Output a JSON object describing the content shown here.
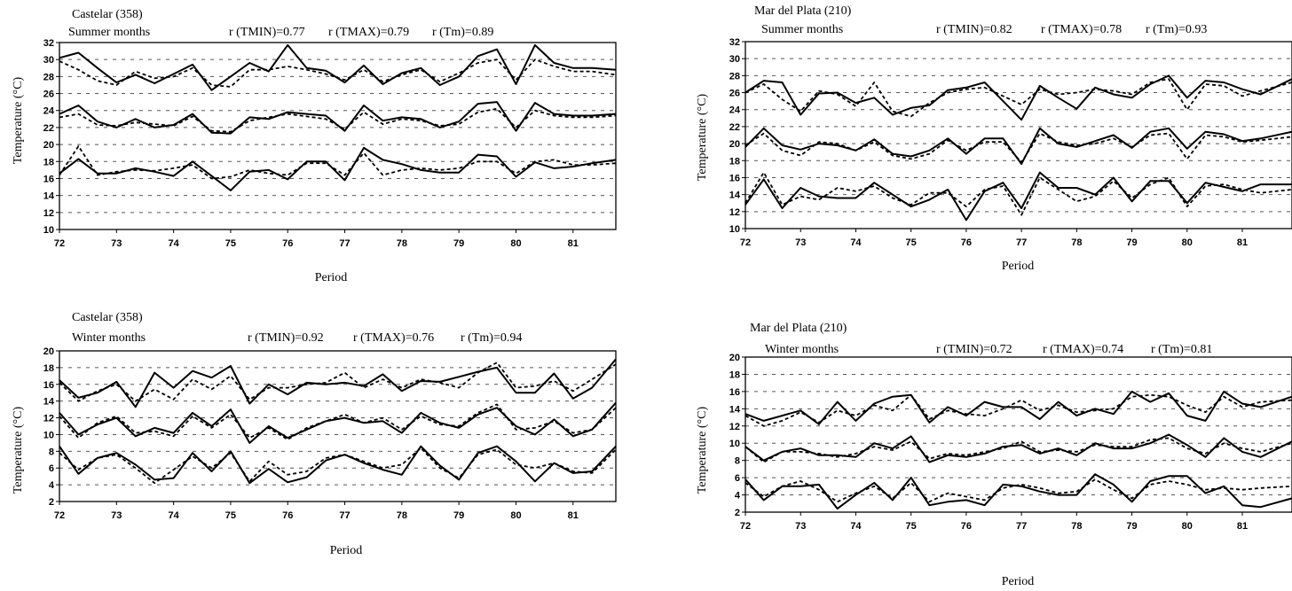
{
  "chart_data": [
    {
      "type": "line",
      "station": "Castelar (358)",
      "season": "Summer months",
      "correlations": [
        "r (TMIN)=0.77",
        "r (TMAX)=0.79",
        "r (Tm)=0.89"
      ],
      "ylabel": "Temperature (°C)",
      "xlabel": "Period",
      "xlim": [
        72,
        81.75
      ],
      "ylim": [
        10,
        32
      ],
      "yticks": [
        10,
        12,
        14,
        16,
        18,
        20,
        22,
        24,
        26,
        28,
        30,
        32
      ],
      "xticks": [
        72,
        73,
        74,
        75,
        76,
        77,
        78,
        79,
        80,
        81
      ],
      "grid": true,
      "x": [
        72,
        72.333,
        72.667,
        73,
        73.333,
        73.667,
        74,
        74.333,
        74.667,
        75,
        75.333,
        75.667,
        76,
        76.333,
        76.667,
        77,
        77.333,
        77.667,
        78,
        78.333,
        78.667,
        79,
        79.333,
        79.667,
        80,
        80.333,
        80.667,
        81,
        81.333,
        81.75
      ],
      "series": [
        {
          "style": "solid",
          "values": [
            30.2,
            30.8,
            29.0,
            27.3,
            28.2,
            27.2,
            28.3,
            29.4,
            26.4,
            28.0,
            29.6,
            28.6,
            31.7,
            29.0,
            28.7,
            27.3,
            29.3,
            27.1,
            28.4,
            29.0,
            27.0,
            28.0,
            30.4,
            31.2,
            27.1,
            31.7,
            29.6,
            29.0,
            29.0,
            28.8
          ]
        },
        {
          "style": "dashed",
          "values": [
            29.8,
            28.8,
            27.5,
            27.0,
            28.6,
            27.8,
            28.0,
            29.0,
            27.0,
            26.8,
            28.8,
            28.8,
            29.2,
            28.8,
            28.3,
            27.6,
            28.8,
            27.4,
            28.2,
            28.8,
            27.4,
            28.4,
            29.6,
            30.0,
            27.6,
            30.0,
            29.2,
            28.6,
            28.6,
            28.2
          ]
        },
        {
          "style": "solid",
          "values": [
            23.6,
            24.6,
            22.7,
            22.0,
            23.0,
            22.0,
            22.3,
            23.6,
            21.4,
            21.3,
            23.2,
            23.0,
            23.8,
            23.6,
            23.4,
            21.6,
            24.6,
            22.8,
            23.2,
            23.0,
            22.0,
            22.7,
            24.8,
            25.0,
            21.6,
            24.9,
            23.6,
            23.4,
            23.4,
            23.6
          ]
        },
        {
          "style": "dashed",
          "values": [
            23.2,
            23.6,
            22.3,
            22.2,
            22.6,
            22.4,
            22.2,
            23.3,
            21.6,
            21.5,
            22.8,
            23.2,
            23.6,
            23.3,
            23.0,
            21.8,
            23.8,
            22.4,
            23.0,
            22.8,
            22.2,
            22.4,
            23.8,
            24.2,
            22.0,
            24.0,
            23.4,
            23.2,
            23.2,
            23.4
          ]
        },
        {
          "style": "solid",
          "values": [
            16.6,
            18.3,
            16.6,
            16.6,
            17.2,
            16.8,
            16.3,
            18.0,
            16.3,
            14.6,
            16.8,
            17.0,
            15.9,
            18.0,
            18.0,
            15.8,
            19.6,
            18.2,
            17.7,
            17.0,
            16.7,
            16.7,
            18.8,
            18.6,
            16.2,
            17.9,
            17.2,
            17.4,
            17.8,
            18.2
          ]
        },
        {
          "style": "dashed",
          "values": [
            16.4,
            19.8,
            16.4,
            16.8,
            17.0,
            16.9,
            17.2,
            17.6,
            16.0,
            16.2,
            17.0,
            16.6,
            16.4,
            17.8,
            17.8,
            16.4,
            19.0,
            16.4,
            17.0,
            17.2,
            17.0,
            17.2,
            18.0,
            18.0,
            16.6,
            18.0,
            18.2,
            17.6,
            17.6,
            17.8
          ]
        }
      ]
    },
    {
      "type": "line",
      "station": "Mar del Plata (210)",
      "season": "Summer months",
      "correlations": [
        "r (TMIN)=0.82",
        "r (TMAX)=0.78",
        "r (Tm)=0.93"
      ],
      "ylabel": "Temperature (°C)",
      "xlabel": "Period",
      "xlim": [
        72,
        81.9
      ],
      "ylim": [
        10,
        32
      ],
      "yticks": [
        10,
        12,
        14,
        16,
        18,
        20,
        22,
        24,
        26,
        28,
        30,
        32
      ],
      "xticks": [
        72,
        73,
        74,
        75,
        76,
        77,
        78,
        79,
        80,
        81
      ],
      "grid": true,
      "x": [
        72,
        72.333,
        72.667,
        73,
        73.333,
        73.667,
        74,
        74.333,
        74.667,
        75,
        75.333,
        75.667,
        76,
        76.333,
        76.667,
        77,
        77.333,
        77.667,
        78,
        78.333,
        78.667,
        79,
        79.333,
        79.667,
        80,
        80.333,
        80.667,
        81,
        81.333,
        81.9
      ],
      "series": [
        {
          "style": "solid",
          "values": [
            26.0,
            27.4,
            27.2,
            23.4,
            25.9,
            26.0,
            24.8,
            25.4,
            23.4,
            24.2,
            24.5,
            26.3,
            26.6,
            27.2,
            25.0,
            22.8,
            26.8,
            25.4,
            24.1,
            26.6,
            25.8,
            25.4,
            27.0,
            28.0,
            25.4,
            27.4,
            27.2,
            26.4,
            25.8,
            27.6
          ]
        },
        {
          "style": "dashed",
          "values": [
            26.0,
            27.0,
            25.2,
            23.8,
            26.2,
            25.8,
            24.4,
            27.2,
            23.8,
            23.2,
            24.8,
            26.0,
            26.4,
            26.6,
            25.6,
            24.6,
            26.4,
            25.8,
            26.0,
            26.4,
            26.2,
            25.8,
            27.2,
            27.6,
            24.0,
            27.0,
            26.8,
            25.6,
            26.2,
            27.2
          ]
        },
        {
          "style": "solid",
          "values": [
            19.6,
            21.8,
            19.8,
            19.3,
            20.0,
            19.8,
            19.2,
            20.5,
            18.8,
            18.5,
            19.2,
            20.6,
            18.8,
            20.6,
            20.6,
            17.6,
            21.8,
            20.0,
            19.6,
            20.3,
            21.0,
            19.5,
            21.4,
            21.8,
            19.4,
            21.4,
            21.1,
            20.3,
            20.6,
            21.4
          ]
        },
        {
          "style": "dashed",
          "values": [
            19.8,
            21.2,
            19.2,
            18.6,
            20.2,
            20.0,
            19.2,
            20.2,
            18.6,
            18.2,
            18.8,
            20.4,
            19.2,
            20.2,
            20.2,
            17.8,
            21.2,
            20.2,
            19.8,
            20.0,
            20.6,
            19.6,
            21.0,
            21.2,
            18.2,
            21.0,
            20.8,
            20.2,
            20.4,
            20.8
          ]
        },
        {
          "style": "solid",
          "values": [
            12.8,
            15.8,
            12.4,
            14.8,
            13.8,
            13.6,
            13.6,
            15.4,
            14.0,
            12.6,
            13.4,
            14.6,
            11.0,
            14.4,
            15.4,
            12.4,
            16.6,
            14.8,
            14.8,
            14.0,
            16.0,
            13.2,
            15.6,
            15.6,
            13.0,
            15.4,
            14.9,
            14.4,
            15.2,
            15.2
          ]
        },
        {
          "style": "dashed",
          "values": [
            13.0,
            16.6,
            12.8,
            13.8,
            13.4,
            14.8,
            14.4,
            15.0,
            13.6,
            12.8,
            14.2,
            14.2,
            12.6,
            14.6,
            15.0,
            11.6,
            16.0,
            14.6,
            13.2,
            13.8,
            15.6,
            13.6,
            15.2,
            16.0,
            12.6,
            15.0,
            15.2,
            14.6,
            14.2,
            14.6
          ]
        }
      ]
    },
    {
      "type": "line",
      "station": "Castelar (358)",
      "season": "Winter months",
      "correlations": [
        "r (TMIN)=0.92",
        "r (TMAX)=0.76",
        "r (Tm)=0.94"
      ],
      "ylabel": "Temperature (°C)",
      "xlabel": "Period",
      "xlim": [
        72,
        81.75
      ],
      "ylim": [
        2,
        20
      ],
      "yticks": [
        2,
        4,
        6,
        8,
        10,
        12,
        14,
        16,
        18,
        20
      ],
      "xticks": [
        72,
        73,
        74,
        75,
        76,
        77,
        78,
        79,
        80,
        81
      ],
      "grid": true,
      "x": [
        72,
        72.333,
        72.667,
        73,
        73.333,
        73.667,
        74,
        74.333,
        74.667,
        75,
        75.333,
        75.667,
        76,
        76.333,
        76.667,
        77,
        77.333,
        77.667,
        78,
        78.333,
        78.667,
        79,
        79.333,
        79.667,
        80,
        80.333,
        80.667,
        81,
        81.333,
        81.75
      ],
      "series": [
        {
          "style": "solid",
          "values": [
            16.5,
            14.4,
            15.0,
            16.3,
            13.3,
            17.4,
            15.6,
            17.6,
            16.8,
            18.2,
            13.7,
            16.0,
            14.8,
            16.2,
            16.0,
            16.2,
            15.8,
            17.2,
            15.2,
            16.4,
            16.3,
            16.9,
            17.5,
            18.0,
            15.0,
            15.0,
            17.3,
            14.3,
            15.6,
            19.0
          ]
        },
        {
          "style": "dashed",
          "values": [
            16.2,
            14.0,
            15.2,
            16.0,
            14.0,
            15.4,
            14.2,
            16.6,
            15.4,
            17.0,
            14.2,
            15.6,
            15.6,
            16.0,
            16.2,
            17.4,
            15.6,
            16.6,
            15.6,
            16.6,
            16.2,
            15.6,
            17.4,
            18.6,
            15.6,
            15.8,
            16.4,
            15.2,
            16.6,
            18.4
          ]
        },
        {
          "style": "solid",
          "values": [
            12.6,
            10.0,
            11.2,
            12.0,
            9.8,
            10.8,
            10.2,
            12.6,
            11.0,
            13.0,
            9.0,
            11.0,
            9.6,
            10.6,
            11.6,
            12.0,
            11.4,
            11.6,
            10.2,
            12.6,
            11.4,
            10.8,
            12.4,
            13.2,
            11.0,
            10.0,
            11.8,
            9.8,
            10.6,
            13.8
          ]
        },
        {
          "style": "dashed",
          "values": [
            12.2,
            9.6,
            11.4,
            12.2,
            10.2,
            10.4,
            9.8,
            12.2,
            10.8,
            12.4,
            9.6,
            10.8,
            9.4,
            10.8,
            11.6,
            12.4,
            11.4,
            12.0,
            10.6,
            12.2,
            11.2,
            11.0,
            12.6,
            13.6,
            10.6,
            10.8,
            11.6,
            10.2,
            10.6,
            13.2
          ]
        },
        {
          "style": "solid",
          "values": [
            8.6,
            5.3,
            7.2,
            7.8,
            6.4,
            4.6,
            4.8,
            7.8,
            5.6,
            8.0,
            4.2,
            5.9,
            4.3,
            4.9,
            6.9,
            7.6,
            6.6,
            5.8,
            5.2,
            8.6,
            6.3,
            4.6,
            7.8,
            8.6,
            6.8,
            4.4,
            6.6,
            5.4,
            5.6,
            8.6
          ]
        },
        {
          "style": "dashed",
          "values": [
            7.8,
            5.8,
            7.2,
            7.6,
            6.0,
            4.2,
            5.8,
            7.4,
            6.0,
            7.8,
            4.4,
            6.8,
            5.2,
            5.6,
            7.2,
            7.6,
            6.8,
            6.0,
            6.4,
            8.4,
            6.0,
            4.8,
            7.6,
            8.2,
            6.4,
            6.0,
            6.6,
            5.6,
            5.4,
            8.2
          ]
        }
      ]
    },
    {
      "type": "line",
      "station": "Mar del Plata (210)",
      "season": "Winter months",
      "correlations": [
        "r (TMIN)=0.72",
        "r (TMAX)=0.74",
        "r (Tm)=0.81"
      ],
      "ylabel": "Temperature (°C)",
      "xlabel": "Period",
      "xlim": [
        72,
        81.9
      ],
      "ylim": [
        2,
        20
      ],
      "yticks": [
        2,
        4,
        6,
        8,
        10,
        12,
        14,
        16,
        18,
        20
      ],
      "xticks": [
        72,
        73,
        74,
        75,
        76,
        77,
        78,
        79,
        80,
        81
      ],
      "grid": true,
      "x": [
        72,
        72.333,
        72.667,
        73,
        73.333,
        73.667,
        74,
        74.333,
        74.667,
        75,
        75.333,
        75.667,
        76,
        76.333,
        76.667,
        77,
        77.333,
        77.667,
        78,
        78.333,
        78.667,
        79,
        79.333,
        79.667,
        80,
        80.333,
        80.667,
        81,
        81.333,
        81.9
      ],
      "series": [
        {
          "style": "solid",
          "values": [
            13.4,
            12.6,
            13.2,
            13.8,
            12.2,
            14.8,
            12.6,
            14.6,
            15.4,
            15.6,
            12.4,
            14.2,
            13.2,
            14.8,
            14.2,
            14.2,
            12.8,
            14.8,
            13.2,
            14.0,
            13.4,
            16.0,
            14.8,
            15.8,
            13.2,
            12.6,
            16.0,
            14.6,
            14.2,
            15.4
          ]
        },
        {
          "style": "dashed",
          "values": [
            13.2,
            12.0,
            12.6,
            13.6,
            12.4,
            13.8,
            13.2,
            14.4,
            13.8,
            15.6,
            12.8,
            13.8,
            13.4,
            13.2,
            14.0,
            15.0,
            13.8,
            14.4,
            13.6,
            13.8,
            14.0,
            15.4,
            15.6,
            15.4,
            14.4,
            13.6,
            15.4,
            14.2,
            14.8,
            15.0
          ]
        },
        {
          "style": "solid",
          "values": [
            9.6,
            8.0,
            9.0,
            9.4,
            8.6,
            8.6,
            8.4,
            10.0,
            9.4,
            10.8,
            7.8,
            8.6,
            8.4,
            8.8,
            9.6,
            9.8,
            8.8,
            9.4,
            8.6,
            10.0,
            9.4,
            9.4,
            10.0,
            11.0,
            9.8,
            8.4,
            10.6,
            9.0,
            8.4,
            10.2
          ]
        },
        {
          "style": "dashed",
          "values": [
            9.6,
            7.8,
            9.0,
            9.0,
            8.8,
            8.4,
            8.8,
            9.6,
            9.2,
            10.2,
            8.2,
            8.8,
            8.6,
            9.0,
            9.4,
            10.2,
            9.0,
            9.2,
            9.0,
            9.8,
            9.6,
            9.6,
            10.4,
            10.6,
            9.4,
            8.8,
            10.0,
            9.4,
            9.0,
            10.0
          ]
        },
        {
          "style": "solid",
          "values": [
            5.8,
            3.4,
            5.0,
            5.0,
            5.2,
            2.4,
            4.0,
            5.4,
            3.4,
            6.0,
            2.8,
            3.2,
            3.4,
            2.8,
            5.2,
            5.0,
            4.4,
            4.0,
            4.0,
            6.4,
            5.2,
            3.2,
            5.6,
            6.2,
            6.2,
            4.2,
            5.0,
            2.8,
            2.6,
            3.6
          ]
        },
        {
          "style": "dashed",
          "values": [
            5.4,
            3.8,
            5.0,
            5.6,
            4.6,
            3.2,
            4.2,
            5.0,
            3.6,
            5.4,
            3.2,
            4.2,
            3.8,
            3.4,
            4.8,
            5.2,
            4.8,
            4.2,
            4.4,
            5.8,
            4.6,
            3.6,
            5.2,
            5.6,
            5.2,
            4.6,
            4.8,
            4.6,
            4.8,
            5.0
          ]
        }
      ]
    }
  ]
}
